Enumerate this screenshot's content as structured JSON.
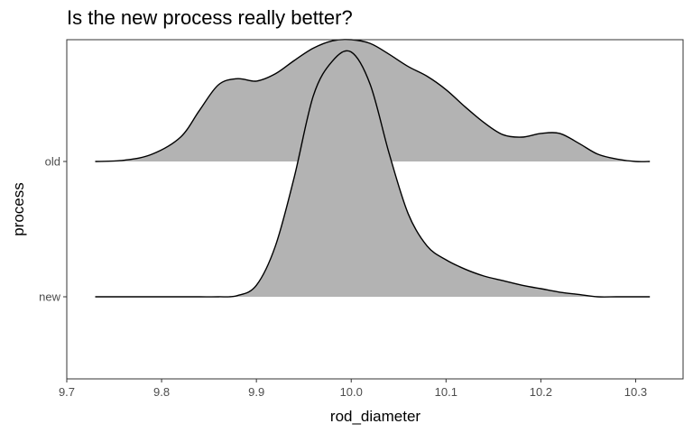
{
  "chart_data": {
    "type": "area",
    "subtype": "ridgeline-density",
    "title": "Is the new process really better?",
    "xlabel": "rod_diameter",
    "ylabel": "process",
    "xlim": [
      9.7,
      10.35
    ],
    "x_ticks": [
      9.7,
      9.8,
      9.9,
      10.0,
      10.1,
      10.2,
      10.3
    ],
    "x_tick_labels": [
      "9.7",
      "9.8",
      "9.9",
      "10.0",
      "10.1",
      "10.2",
      "10.3"
    ],
    "categories": [
      "new",
      "old"
    ],
    "grid": false,
    "fill_color": "#b3b3b3",
    "line_color": "#000000",
    "x": [
      9.73,
      9.76,
      9.79,
      9.82,
      9.84,
      9.86,
      9.88,
      9.9,
      9.92,
      9.94,
      9.96,
      9.98,
      10.0,
      10.02,
      10.04,
      10.06,
      10.08,
      10.1,
      10.12,
      10.14,
      10.16,
      10.18,
      10.2,
      10.22,
      10.24,
      10.26,
      10.28,
      10.3,
      10.315
    ],
    "series": [
      {
        "name": "old",
        "values": [
          0.0,
          0.01,
          0.06,
          0.2,
          0.42,
          0.63,
          0.68,
          0.66,
          0.72,
          0.83,
          0.93,
          0.99,
          1.0,
          0.97,
          0.88,
          0.78,
          0.7,
          0.59,
          0.45,
          0.32,
          0.22,
          0.2,
          0.23,
          0.23,
          0.15,
          0.06,
          0.02,
          0.0,
          0.0
        ]
      },
      {
        "name": "new",
        "values": [
          0.0,
          0.0,
          0.0,
          0.0,
          0.0,
          0.0,
          0.005,
          0.05,
          0.22,
          0.52,
          0.87,
          1.02,
          1.06,
          0.92,
          0.62,
          0.36,
          0.22,
          0.16,
          0.12,
          0.09,
          0.07,
          0.05,
          0.035,
          0.02,
          0.01,
          0.0,
          0.0,
          0.0,
          0.0
        ]
      }
    ]
  }
}
